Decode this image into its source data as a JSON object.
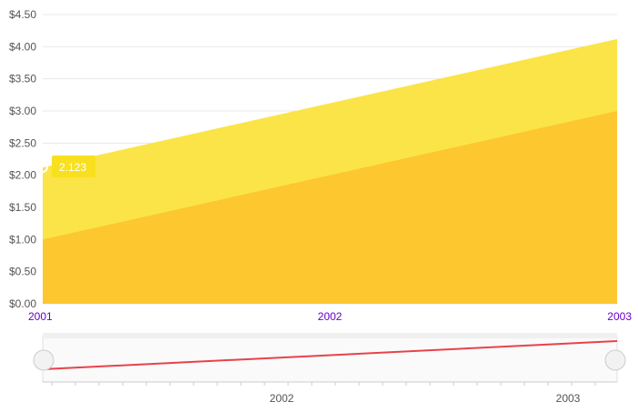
{
  "chart_data": {
    "type": "area",
    "title": "",
    "xlabel": "",
    "ylabel": "",
    "x": [
      "2001",
      "2002",
      "2003"
    ],
    "series": [
      {
        "values": [
          1.0,
          2.0,
          3.0
        ],
        "color": "#FCC72F"
      },
      {
        "values": [
          2.12,
          3.12,
          4.12
        ],
        "color": "#FBE448"
      }
    ],
    "ylim": [
      0,
      4.5
    ],
    "yticks": [
      "$0.00",
      "$0.50",
      "$1.00",
      "$1.50",
      "$2.00",
      "$2.50",
      "$3.00",
      "$3.50",
      "$4.00",
      "$4.50"
    ],
    "x_tick_color": "#6A00C8",
    "grid": true,
    "tooltip": {
      "value": "2.123",
      "x": "2001",
      "color": "#FBE448"
    },
    "navigator": {
      "labels": [
        "2002",
        "2003"
      ],
      "line_color": "#E8424A",
      "values": [
        1.0,
        3.0
      ]
    }
  }
}
